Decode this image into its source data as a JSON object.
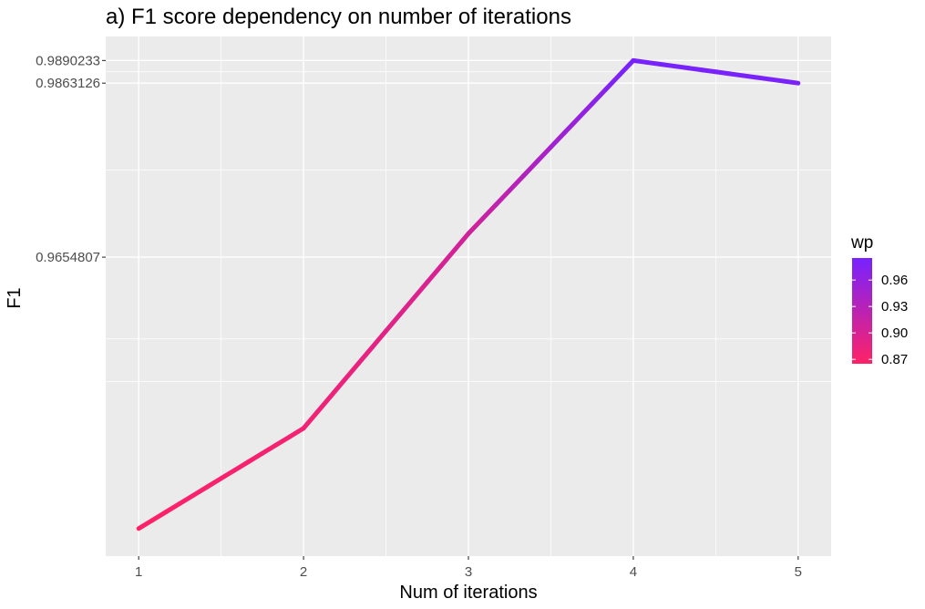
{
  "chart_data": {
    "type": "line",
    "title": "a) F1 score dependency on number of iterations",
    "xlabel": "Num of iterations",
    "ylabel": "F1",
    "x": [
      1,
      2,
      3,
      4,
      5
    ],
    "y": [
      0.933,
      0.945,
      0.9683,
      0.9890233,
      0.9863126
    ],
    "color_value": [
      0.867,
      0.875,
      0.905,
      0.985,
      0.982
    ],
    "x_ticks": [
      "1",
      "2",
      "3",
      "4",
      "5"
    ],
    "y_tick_labels": [
      "0.9654807",
      "0.9863126",
      "0.9890233"
    ],
    "y_tick_values": [
      0.9654807,
      0.9863126,
      0.9890233
    ],
    "xlim": [
      0.8,
      5.2
    ],
    "ylim": [
      0.9297,
      0.9919
    ],
    "grid": true,
    "legend": {
      "title": "wp",
      "position": "right",
      "labels": [
        "0.96",
        "0.93",
        "0.90",
        "0.87"
      ],
      "values": [
        0.96,
        0.93,
        0.9,
        0.87
      ],
      "range": [
        0.865,
        0.985
      ],
      "color_low": "#ff2266",
      "color_high": "#7722ff"
    },
    "panel_background": "#ebebeb",
    "grid_color": "#ffffff"
  }
}
